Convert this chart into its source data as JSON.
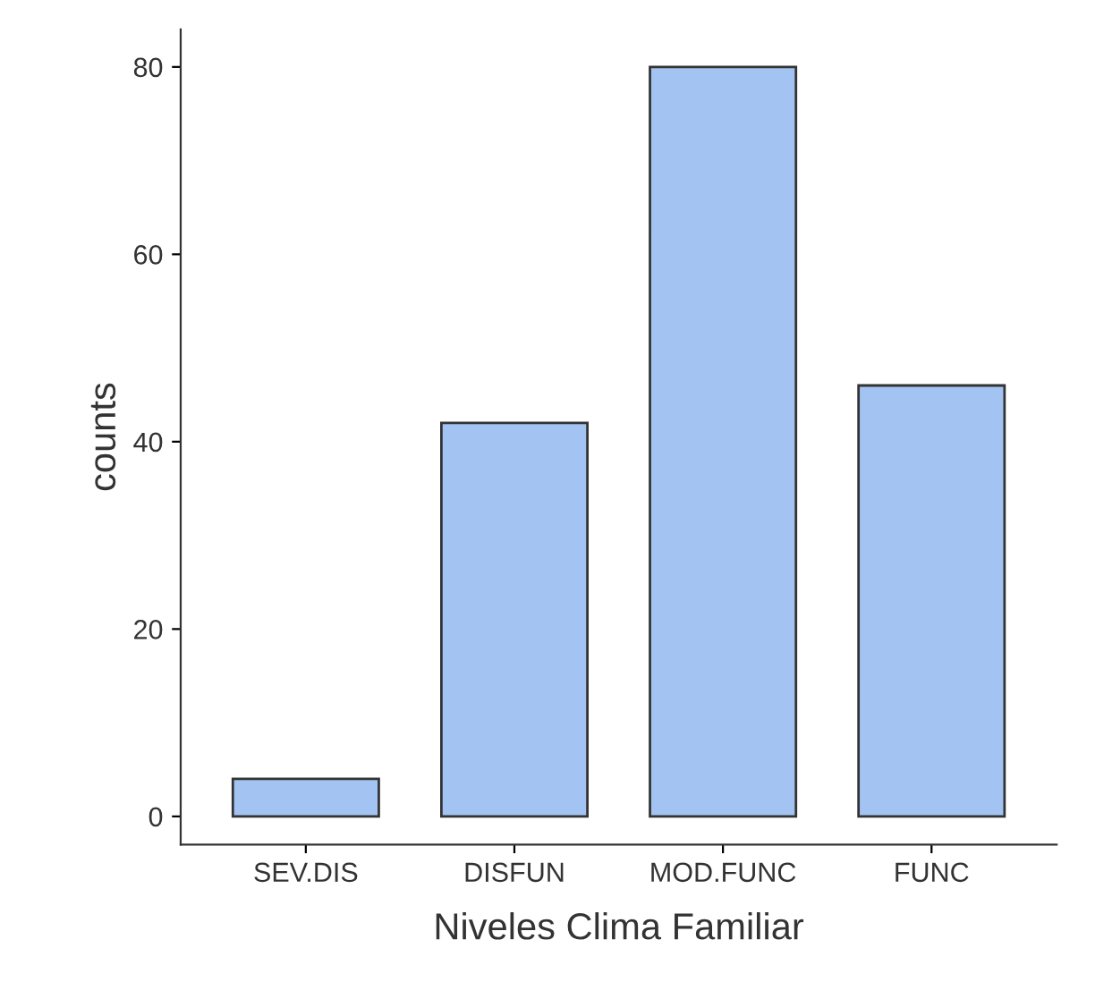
{
  "chart_data": {
    "type": "bar",
    "xlabel": "Niveles Clima Familiar",
    "ylabel": "counts",
    "categories": [
      "SEV.DIS",
      "DISFUN",
      "MOD.FUNC",
      "FUNC"
    ],
    "values": [
      4,
      42,
      80,
      46
    ],
    "color": "#a3c4f2",
    "ylim": [
      -3,
      84
    ],
    "yticks": [
      0,
      20,
      40,
      60,
      80
    ],
    "grid": false
  }
}
